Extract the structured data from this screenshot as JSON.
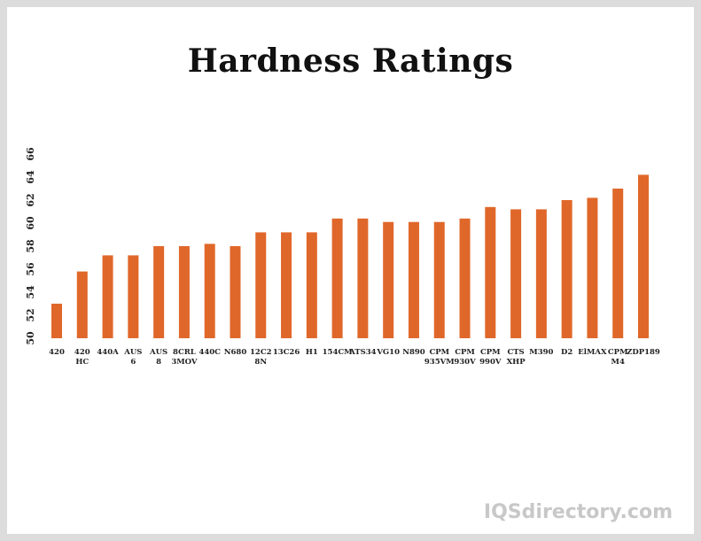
{
  "chart_data": {
    "type": "bar",
    "title": "Hardness Ratings",
    "xlabel": "",
    "ylabel": "",
    "ylim": [
      50,
      66
    ],
    "yticks": [
      50,
      52,
      54,
      56,
      58,
      60,
      62,
      64,
      66
    ],
    "grid": false,
    "bar_color": "#e0672a",
    "categories": [
      "420",
      "420 HC",
      "440A",
      "AUS 6",
      "AUS 8",
      "8CRL 3MOV",
      "440C",
      "N680",
      "12C2 8N",
      "13C26",
      "H1",
      "154CM",
      "ATS34",
      "VG10",
      "N890",
      "CPM 935VM",
      "CPM 930V",
      "CPM 990V",
      "CTS XHP",
      "M390",
      "D2",
      "ElMAX",
      "CPM M4",
      "ZDP189"
    ],
    "values": [
      53,
      55.8,
      57.2,
      57.2,
      58,
      58,
      58.2,
      58,
      59.2,
      59.2,
      59.2,
      60.4,
      60.4,
      60.1,
      60.1,
      60.1,
      60.4,
      61.4,
      61.2,
      61.2,
      62,
      62.2,
      63,
      64.2
    ]
  },
  "watermark": "IQSdirectory.com"
}
